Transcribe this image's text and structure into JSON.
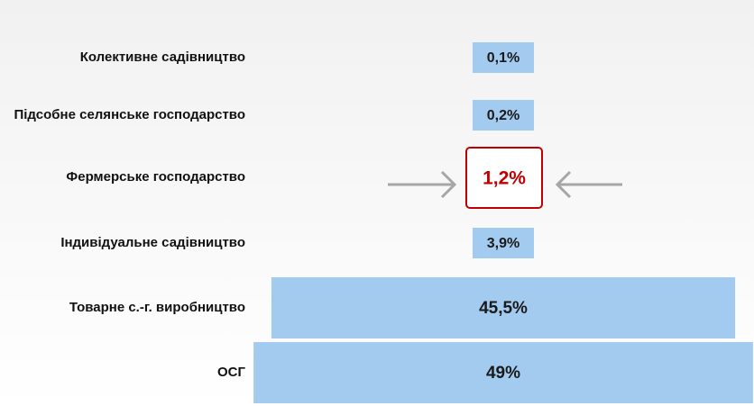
{
  "chart_data": {
    "type": "bar",
    "orientation": "horizontal",
    "categories": [
      "Колективне садівництво",
      "Підсобне селянське господарство",
      "Фермерське господарство",
      "Індивідуальне садівництво",
      "Товарне с.-г. виробництво",
      "ОСГ"
    ],
    "values": [
      0.1,
      0.2,
      1.2,
      3.9,
      45.5,
      49
    ],
    "value_labels": [
      "0,1%",
      "0,2%",
      "1,2%",
      "3,9%",
      "45,5%",
      "49%"
    ],
    "color": "#a3cbf0",
    "highlight": 2,
    "highlight_color": "#c00000"
  }
}
